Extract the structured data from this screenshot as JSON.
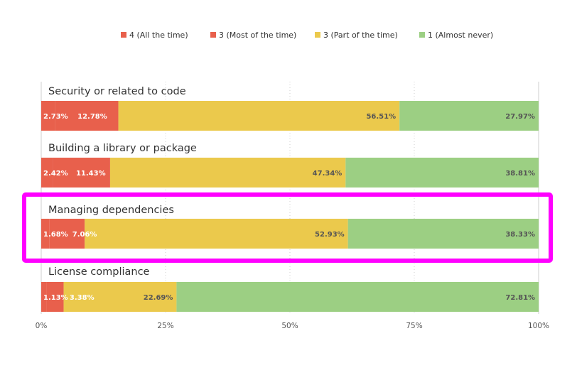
{
  "chart_data": {
    "type": "bar",
    "orientation": "horizontal",
    "stacked": true,
    "series": [
      {
        "name": "4 (All the time)",
        "color": "#e8604c",
        "values": [
          2.73,
          2.42,
          1.68,
          1.13
        ],
        "labels": [
          "2.73%",
          "2.42%",
          "1.68%",
          "1.13%"
        ]
      },
      {
        "name": "3 (Most of the time)",
        "color": "#e8604c",
        "values": [
          12.78,
          11.43,
          7.06,
          3.38
        ],
        "labels": [
          "12.78%",
          "11.43%",
          "7.06%",
          "3.38%"
        ]
      },
      {
        "name": "3 (Part of the time)",
        "color": "#ebc94c",
        "values": [
          56.51,
          47.34,
          52.93,
          22.69
        ],
        "labels": [
          "56.51%",
          "47.34%",
          "52.93%",
          "22.69%"
        ]
      },
      {
        "name": "1 (Almost never)",
        "color": "#9ccf83",
        "values": [
          27.97,
          38.81,
          38.33,
          72.81
        ],
        "labels": [
          "27.97%",
          "38.81%",
          "38.33%",
          "72.81%"
        ]
      }
    ],
    "categories": [
      "Security or related to code",
      "Building a library or package",
      "Managing dependencies",
      "License compliance"
    ],
    "highlighted_category": "Managing dependencies",
    "highlight_color": "#ff00ff",
    "xlim": [
      0,
      100
    ],
    "x_ticks": [
      "0%",
      "25%",
      "50%",
      "75%",
      "100%"
    ],
    "legend_position": "top",
    "grid": true,
    "label_colors": {
      "on_red": "#ffffff",
      "on_other": "#555555"
    }
  }
}
